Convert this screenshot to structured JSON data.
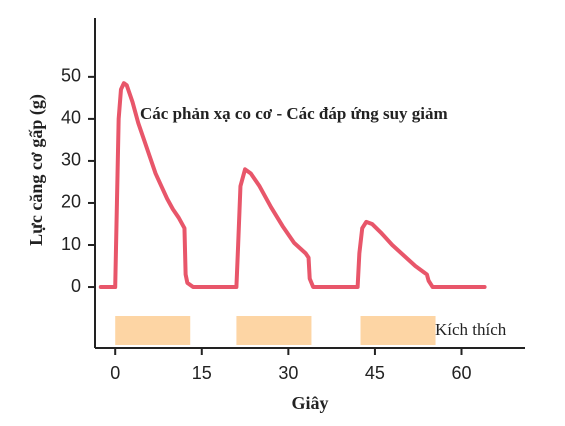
{
  "chart_data": {
    "type": "line",
    "annotation": "Các phản xạ co cơ - Các đáp ứng suy giảm",
    "x_label": "Giây",
    "y_label": "Lực căng cơ gấp (g)",
    "x": [
      -2.5,
      0,
      0.3,
      0.6,
      1,
      1.5,
      2,
      3,
      4,
      5,
      6,
      7,
      8,
      9,
      10,
      11,
      12,
      12.2,
      12.5,
      13.5,
      21,
      21.3,
      21.7,
      22.5,
      23.5,
      25,
      27,
      29,
      31,
      33,
      33.5,
      33.7,
      34.3,
      42,
      42.3,
      42.8,
      43.5,
      44.5,
      46,
      48,
      50,
      52,
      53.5,
      54,
      54.3,
      55,
      64
    ],
    "y": [
      0,
      0,
      20,
      40,
      47,
      48.5,
      48,
      44,
      39,
      35,
      31,
      27,
      24,
      21,
      18.5,
      16.5,
      14,
      3,
      1,
      0,
      0,
      10,
      24,
      28,
      27,
      24,
      19,
      14.5,
      10.5,
      8,
      7,
      2,
      0,
      0,
      8,
      14,
      15.5,
      15,
      13,
      10,
      7.5,
      5,
      3.5,
      3,
      1.5,
      0,
      0
    ],
    "color": "#e8566a",
    "stimulus_label": "Kích thích",
    "stimuli": [
      [
        0,
        13
      ],
      [
        21,
        34
      ],
      [
        42.5,
        55.5
      ]
    ],
    "stimulus_color": "#fdd5a4",
    "xlim": [
      -3.5,
      71
    ],
    "ylim": [
      -14.5,
      64
    ],
    "xticks": [
      0,
      15,
      30,
      45,
      60
    ],
    "yticks": [
      0,
      10,
      20,
      30,
      40,
      50
    ]
  }
}
